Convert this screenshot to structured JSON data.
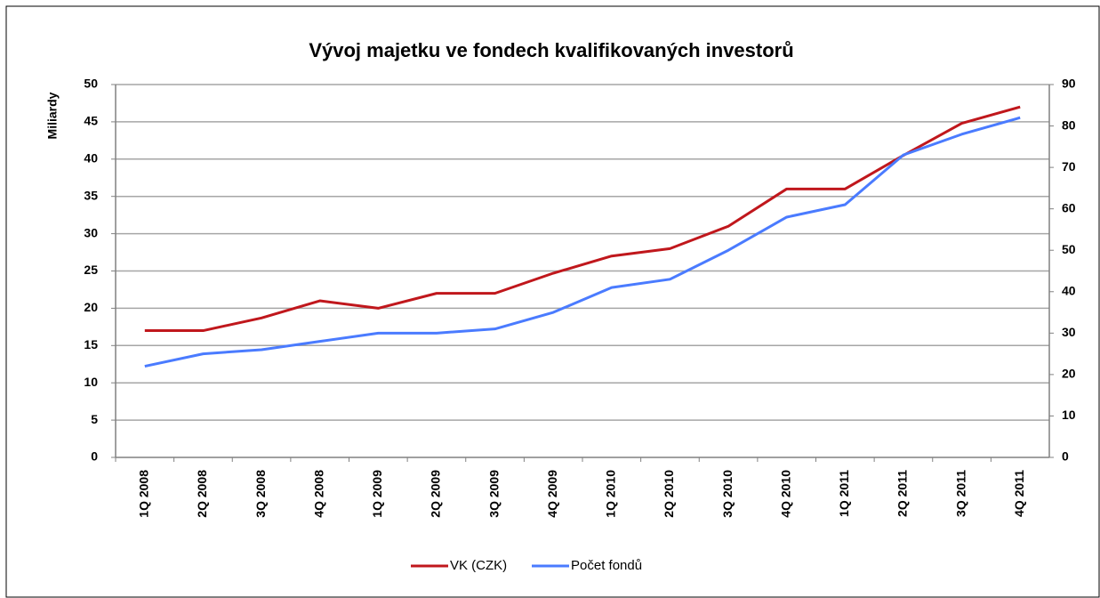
{
  "chart_data": {
    "type": "line",
    "title": "Vývoj majetku ve fondech kvalifikovaných investorů",
    "y_label": "Miliardy",
    "categories": [
      "1Q 2008",
      "2Q 2008",
      "3Q 2008",
      "4Q 2008",
      "1Q 2009",
      "2Q 2009",
      "3Q 2009",
      "4Q 2009",
      "1Q 2010",
      "2Q 2010",
      "3Q 2010",
      "4Q 2010",
      "1Q 2011",
      "2Q 2011",
      "3Q 2011",
      "4Q 2011"
    ],
    "series": [
      {
        "name": "VK (CZK)",
        "color": "#c0171c",
        "values": [
          17,
          17,
          18.7,
          21,
          20,
          22,
          22,
          24.7,
          27,
          28,
          31,
          36,
          36,
          40.5,
          44.8,
          47
        ]
      },
      {
        "name": "Počet fondů",
        "color": "#4a7bff",
        "axis": "y2",
        "values": [
          22,
          25,
          26,
          28,
          30,
          30,
          31,
          35,
          41,
          43,
          50,
          58,
          61,
          73,
          78,
          82
        ]
      }
    ],
    "ylim": [
      0,
      50
    ],
    "yticks": [
      0,
      5,
      10,
      15,
      20,
      25,
      30,
      35,
      40,
      45,
      50
    ],
    "y2lim": [
      0,
      90
    ],
    "y2ticks": [
      0,
      10,
      20,
      30,
      40,
      50,
      60,
      70,
      80,
      90
    ],
    "grid": true,
    "legend": "bottom"
  }
}
